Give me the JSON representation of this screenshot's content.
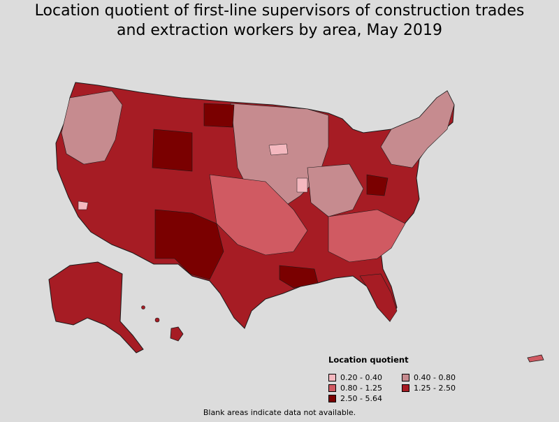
{
  "title": {
    "line1": "Location quotient of first-line supervisors of construction trades",
    "line2": "and extraction workers by area, May 2019"
  },
  "legend": {
    "title": "Location quotient",
    "items": [
      {
        "label": "0.20 - 0.40",
        "color": "#f4b8bf"
      },
      {
        "label": "0.40 - 0.80",
        "color": "#c68b8f"
      },
      {
        "label": "0.80 - 1.25",
        "color": "#d05a62"
      },
      {
        "label": "1.25 - 2.50",
        "color": "#a61c24"
      },
      {
        "label": "2.50 - 5.64",
        "color": "#7a0000"
      }
    ]
  },
  "footnote": "Blank areas indicate data not available.",
  "colors": {
    "background": "#dcdcdc",
    "outline": "#1a1a1a"
  }
}
